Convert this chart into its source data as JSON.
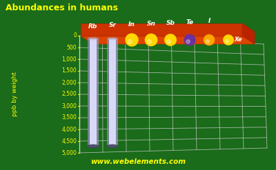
{
  "title": "Abundances in humans",
  "ylabel": "ppb by weight",
  "watermark": "www.webelements.com",
  "elements": [
    "Rb",
    "Sr",
    "In",
    "Sn",
    "Sb",
    "Te",
    "I",
    "Xe"
  ],
  "values": [
    4600,
    4600,
    20,
    20,
    20,
    20,
    20,
    0
  ],
  "dot_colors": [
    "#FFD700",
    "#FFD700",
    "#FFD700",
    "#FFD700",
    "#FFD700",
    "#6B2FA0",
    "#FFA500",
    "#FFD700"
  ],
  "bg_color": "#1a6b1a",
  "platform_color_top": "#dd4400",
  "platform_color_side": "#aa2200",
  "grid_color": "#cccccc",
  "title_color": "#ffff00",
  "ylabel_color": "#ffff00",
  "tick_color": "#ffff00",
  "watermark_color": "#ffff00",
  "yticks": [
    0,
    500,
    1000,
    1500,
    2000,
    2500,
    3000,
    3500,
    4000,
    4500,
    5000
  ],
  "ymax": 5000,
  "figsize": [
    4.0,
    2.47
  ],
  "dpi": 100
}
